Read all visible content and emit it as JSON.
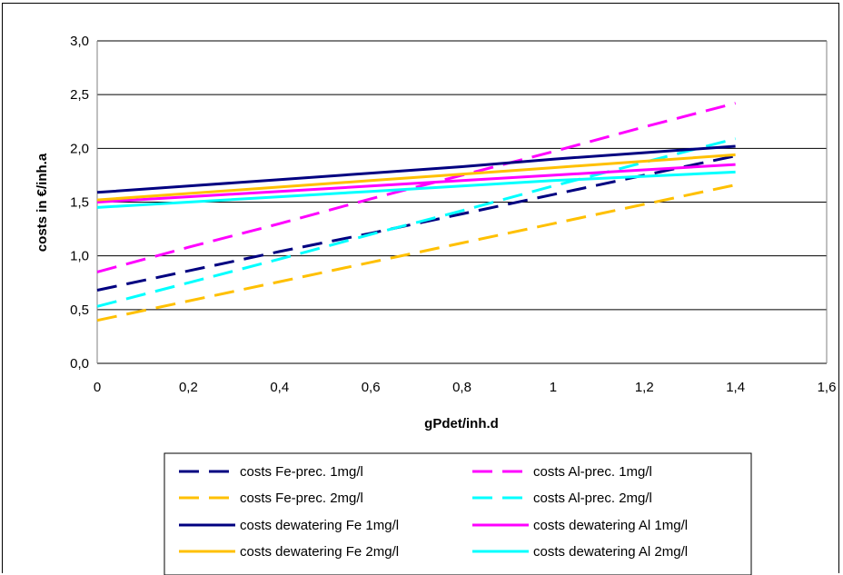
{
  "chart_data": {
    "type": "line",
    "title": "",
    "xlabel": "gPdet/inh.d",
    "ylabel": "costs in €/inh.a",
    "xlim": [
      0,
      1.6
    ],
    "ylim": [
      0,
      3.0
    ],
    "x_ticks": [
      "0",
      "0,2",
      "0,4",
      "0,6",
      "0,8",
      "1",
      "1,2",
      "1,4",
      "1,6"
    ],
    "y_ticks": [
      "0,0",
      "0,5",
      "1,0",
      "1,5",
      "2,0",
      "2,5",
      "3,0"
    ],
    "grid": "horizontal",
    "legend_position": "bottom",
    "x": [
      0,
      0.2,
      0.4,
      0.6,
      0.8,
      1.0,
      1.2,
      1.4
    ],
    "series": [
      {
        "name": "costs Fe-prec. 1mg/l",
        "color": "#000080",
        "dashed": true,
        "values": [
          0.68,
          0.86,
          1.04,
          1.21,
          1.39,
          1.57,
          1.75,
          1.93
        ]
      },
      {
        "name": "costs Al-prec. 1mg/l",
        "color": "#ff00ff",
        "dashed": true,
        "values": [
          0.85,
          1.08,
          1.3,
          1.53,
          1.75,
          1.97,
          2.2,
          2.42
        ]
      },
      {
        "name": "costs Fe-prec. 2mg/l",
        "color": "#ffc000",
        "dashed": true,
        "values": [
          0.4,
          0.58,
          0.76,
          0.94,
          1.12,
          1.3,
          1.48,
          1.66
        ]
      },
      {
        "name": "costs Al-prec. 2mg/l",
        "color": "#00ffff",
        "dashed": true,
        "values": [
          0.53,
          0.75,
          0.97,
          1.2,
          1.42,
          1.65,
          1.87,
          2.09
        ]
      },
      {
        "name": "costs dewatering Fe 1mg/l",
        "color": "#000080",
        "dashed": false,
        "values": [
          1.59,
          1.65,
          1.71,
          1.77,
          1.83,
          1.9,
          1.96,
          2.02
        ]
      },
      {
        "name": "costs dewatering Al 1mg/l",
        "color": "#ff00ff",
        "dashed": false,
        "values": [
          1.5,
          1.55,
          1.6,
          1.65,
          1.7,
          1.75,
          1.8,
          1.85
        ]
      },
      {
        "name": "costs dewatering Fe 2mg/l",
        "color": "#ffc000",
        "dashed": false,
        "values": [
          1.52,
          1.58,
          1.64,
          1.7,
          1.76,
          1.82,
          1.88,
          1.94
        ]
      },
      {
        "name": "costs dewatering Al 2mg/l",
        "color": "#00ffff",
        "dashed": false,
        "values": [
          1.45,
          1.5,
          1.55,
          1.6,
          1.65,
          1.7,
          1.74,
          1.78
        ]
      }
    ]
  }
}
